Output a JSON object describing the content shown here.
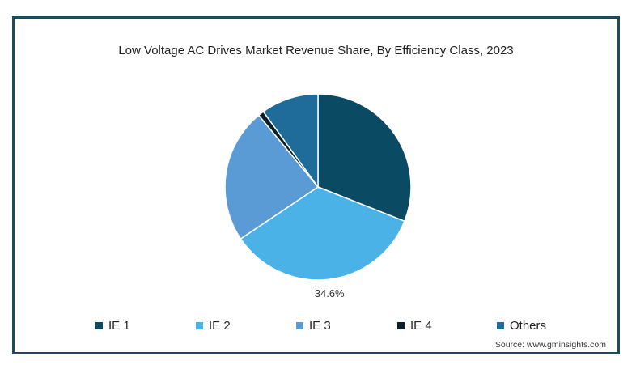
{
  "chart_data": {
    "type": "pie",
    "title": "Low Voltage AC Drives Market Revenue Share, By Efficiency Class, 2023",
    "categories": [
      "IE 1",
      "IE 2",
      "IE 3",
      "IE 4",
      "Others"
    ],
    "values": [
      31.0,
      34.6,
      23.4,
      1.0,
      10.0
    ],
    "colors": [
      "#0b4a63",
      "#4ab2e6",
      "#5b9bd5",
      "#0a1f2b",
      "#1f6b9a"
    ],
    "data_labels": [
      {
        "category": "IE 2",
        "text": "34.6%"
      }
    ],
    "start_angle_deg": 0,
    "direction": "clockwise",
    "legend": {
      "placement": "bottom",
      "items": [
        {
          "label": "IE 1",
          "color": "#0b4a63"
        },
        {
          "label": "IE 2",
          "color": "#4ab2e6"
        },
        {
          "label": "IE 3",
          "color": "#5b9bd5"
        },
        {
          "label": "IE 4",
          "color": "#0a1f2b"
        },
        {
          "label": "Others",
          "color": "#1f6b9a"
        }
      ]
    },
    "source": "Source: www.gminsights.com"
  }
}
